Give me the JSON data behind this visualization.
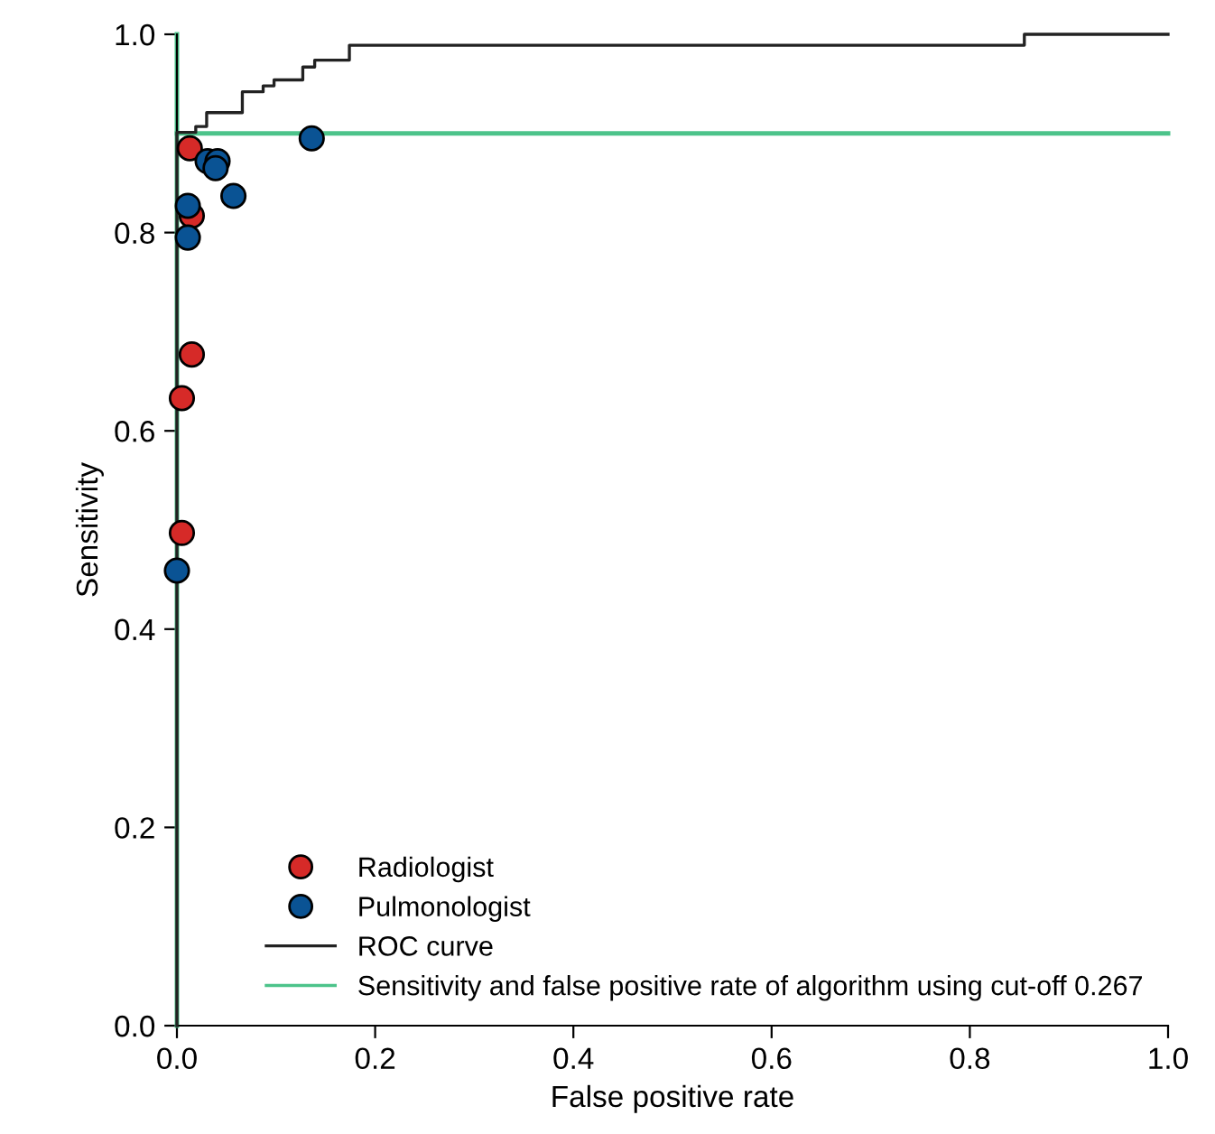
{
  "chart_data": {
    "type": "scatter",
    "xlabel": "False positive rate",
    "ylabel": "Sensitivity",
    "xlim": [
      0,
      1
    ],
    "ylim": [
      0,
      1
    ],
    "xticks": [
      {
        "value": 0,
        "label": "0.0"
      },
      0.2,
      0.4,
      0.6,
      0.8,
      {
        "value": 1,
        "label": "1.0"
      }
    ],
    "yticks": [
      {
        "value": 0,
        "label": "0.0"
      },
      0.2,
      0.4,
      0.6,
      0.8,
      {
        "value": 1,
        "label": "1.0"
      }
    ],
    "grid": false,
    "legend": "bottom right",
    "series": [
      {
        "name": "Radiologist",
        "marker": "circle",
        "color": "#d62a28",
        "x": [
          0.013,
          0.015,
          0.015,
          0.005,
          0.005
        ],
        "values": [
          0.885,
          0.817,
          0.677,
          0.633,
          0.497
        ]
      },
      {
        "name": "Pulmonologist",
        "marker": "circle",
        "color": "#0a5394",
        "x": [
          0.136,
          0.031,
          0.041,
          0.039,
          0.057,
          0.011,
          0.011,
          0.0
        ],
        "values": [
          0.895,
          0.872,
          0.872,
          0.865,
          0.837,
          0.827,
          0.795,
          0.459
        ]
      },
      {
        "name": "ROC curve",
        "type": "step",
        "color": "#222222",
        "x": [
          0,
          0,
          0.019,
          0.03,
          0.066,
          0.087,
          0.098,
          0.127,
          0.139,
          0.174,
          0.855,
          1.0
        ],
        "values": [
          0,
          0.901,
          0.907,
          0.921,
          0.942,
          0.948,
          0.954,
          0.967,
          0.974,
          0.989,
          1.0,
          1.0
        ]
      }
    ],
    "ref_lines": [
      {
        "axis": "y",
        "value": 0.9,
        "label": "Sensitivity and false positive rate of algorithm using cut-off 0.267",
        "color": "#4cc38a"
      },
      {
        "axis": "x",
        "value": 0,
        "color": "#4cc38a"
      }
    ]
  }
}
